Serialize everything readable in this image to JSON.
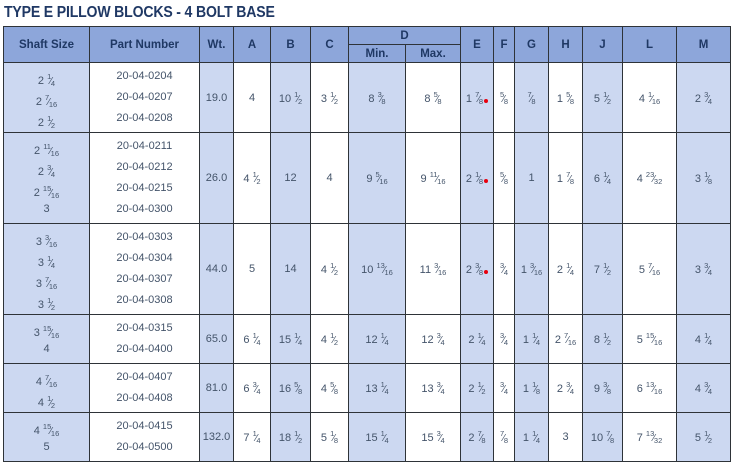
{
  "title": "TYPE E PILLOW BLOCKS - 4 BOLT BASE",
  "colors": {
    "header_bg": "#8da6da",
    "alt_col_bg": "#ccd8f1",
    "border": "#2e3338",
    "title": "#1f3864",
    "text": "#44546a",
    "marker": "#e8000d"
  },
  "table": {
    "headers": {
      "shaft_size": "Shaft Size",
      "part_number": "Part Number",
      "wt": "Wt.",
      "a": "A",
      "b": "B",
      "c": "C",
      "d": "D",
      "d_min": "Min.",
      "d_max": "Max.",
      "e": "E",
      "f": "F",
      "g": "G",
      "h": "H",
      "j": "J",
      "l": "L",
      "m": "M"
    },
    "rows": [
      {
        "shaft_sizes": [
          "2 1/4",
          "2 7/16",
          "2 1/2"
        ],
        "part_numbers": [
          "20-04-0204",
          "20-04-0207",
          "20-04-0208"
        ],
        "wt": "19.0",
        "a": "4",
        "b": "10 1/2",
        "c": "3 1/2",
        "d_min": "8 3/8",
        "d_max": "8 5/8",
        "e": "1 7/8",
        "e_marker": true,
        "f": "5/8",
        "g": "7/8",
        "h": "1 5/8",
        "j": "5 1/2",
        "l": "4 1/16",
        "m": "2 3/4"
      },
      {
        "shaft_sizes": [
          "2 11/16",
          "2 3/4",
          "2 15/16",
          "3"
        ],
        "part_numbers": [
          "20-04-0211",
          "20-04-0212",
          "20-04-0215",
          "20-04-0300"
        ],
        "wt": "26.0",
        "a": "4 1/2",
        "b": "12",
        "c": "4",
        "d_min": "9 5/16",
        "d_max": "9 11/16",
        "e": "2 1/8",
        "e_marker": true,
        "f": "5/8",
        "g": "1",
        "h": "1 7/8",
        "j": "6 1/4",
        "l": "4 23/32",
        "m": "3 1/8"
      },
      {
        "shaft_sizes": [
          "3 3/16",
          "3 1/4",
          "3 7/16",
          "3 1/2"
        ],
        "part_numbers": [
          "20-04-0303",
          "20-04-0304",
          "20-04-0307",
          "20-04-0308"
        ],
        "wt": "44.0",
        "a": "5",
        "b": "14",
        "c": "4 1/2",
        "d_min": "10 13/16",
        "d_max": "11 3/16",
        "e": "2 3/8",
        "e_marker": true,
        "f": "3/4",
        "g": "1 3/16",
        "h": "2 1/4",
        "j": "7 1/2",
        "l": "5 7/16",
        "m": "3 3/4"
      },
      {
        "shaft_sizes": [
          "3 15/16",
          "4"
        ],
        "part_numbers": [
          "20-04-0315",
          "20-04-0400"
        ],
        "wt": "65.0",
        "a": "6 1/4",
        "b": "15 1/4",
        "c": "4 1/2",
        "d_min": "12 1/4",
        "d_max": "12 3/4",
        "e": "2 1/4",
        "e_marker": false,
        "f": "3/4",
        "g": "1 1/4",
        "h": "2 7/16",
        "j": "8 1/2",
        "l": "5 15/16",
        "m": "4 1/4"
      },
      {
        "shaft_sizes": [
          "4 7/16",
          "4 1/2"
        ],
        "part_numbers": [
          "20-04-0407",
          "20-04-0408"
        ],
        "wt": "81.0",
        "a": "6 3/4",
        "b": "16 5/8",
        "c": "4 5/8",
        "d_min": "13 1/4",
        "d_max": "13 3/4",
        "e": "2 1/2",
        "e_marker": false,
        "f": "3/4",
        "g": "1 1/8",
        "h": "2 3/4",
        "j": "9 3/8",
        "l": "6 13/16",
        "m": "4 3/4"
      },
      {
        "shaft_sizes": [
          "4 15/16",
          "5"
        ],
        "part_numbers": [
          "20-04-0415",
          "20-04-0500"
        ],
        "wt": "132.0",
        "a": "7 1/4",
        "b": "18 1/2",
        "c": "5 1/8",
        "d_min": "15 1/4",
        "d_max": "15 3/4",
        "e": "2 7/8",
        "e_marker": false,
        "f": "7/8",
        "g": "1 1/4",
        "h": "3",
        "j": "10 7/8",
        "l": "7 13/32",
        "m": "5 1/2"
      }
    ]
  }
}
